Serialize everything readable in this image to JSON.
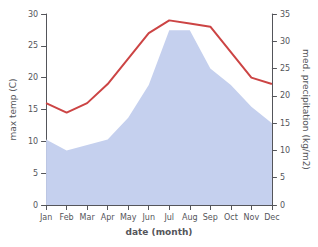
{
  "chart_data": {
    "type": "line",
    "categories": [
      "Jan",
      "Feb",
      "Mar",
      "Apr",
      "May",
      "Jun",
      "Jul",
      "Aug",
      "Sep",
      "Oct",
      "Nov",
      "Dec"
    ],
    "xlabel": "date (month)",
    "ylabel": "max temp (C)",
    "y2label": "med. precipitation (kg/m2)",
    "series": [
      {
        "type": "area",
        "axis": "y2",
        "color": "#c5d0ee",
        "values": [
          12,
          10,
          11,
          12,
          16,
          22,
          32,
          32,
          25,
          22,
          18,
          15
        ]
      },
      {
        "type": "line",
        "color": "#cc4444",
        "values": [
          16,
          14.5,
          16,
          19,
          23,
          27,
          29,
          28.5,
          28,
          24,
          20,
          19
        ]
      }
    ],
    "ylim": [
      0,
      30
    ],
    "yticks": [
      0,
      5,
      10,
      15,
      20,
      25,
      30
    ],
    "y2lim": [
      0,
      35
    ],
    "y2ticks": [
      0,
      5,
      10,
      15,
      20,
      25,
      30,
      35
    ],
    "grid": false,
    "background_color": "#ffffff"
  }
}
